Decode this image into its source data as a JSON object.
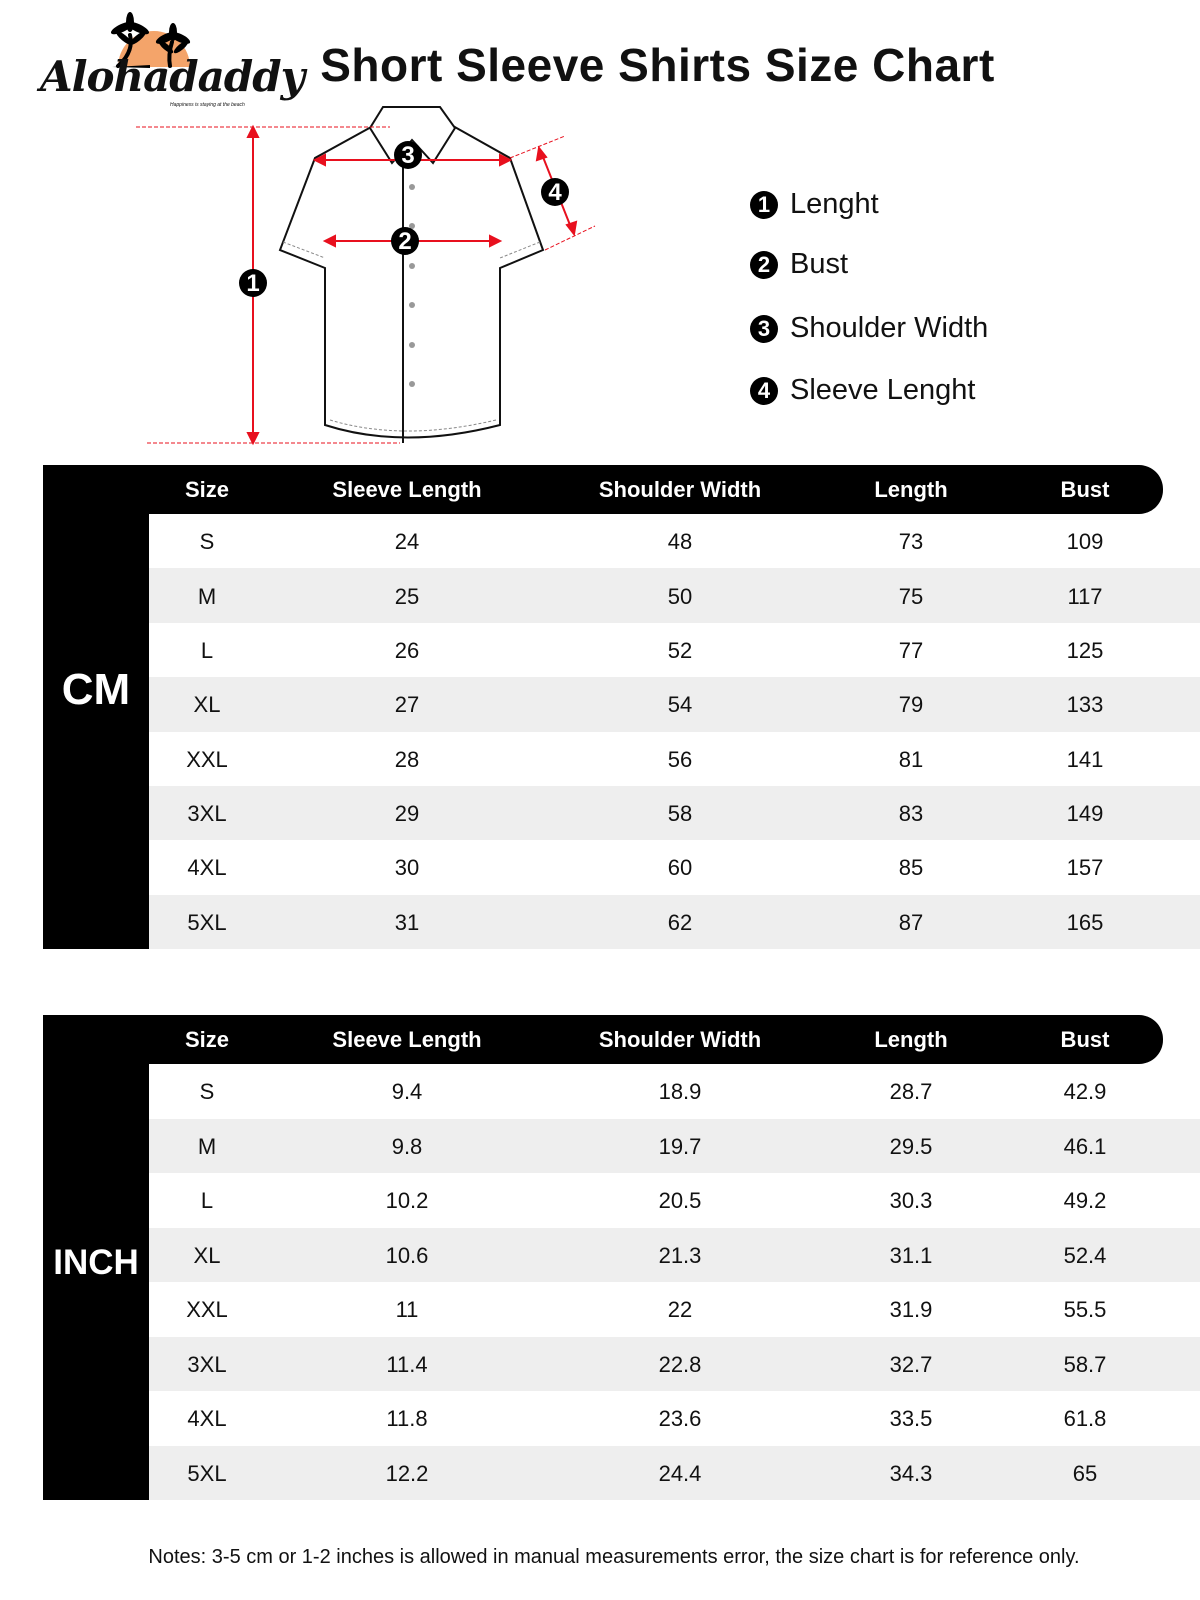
{
  "logo": {
    "name": "Alohadaddy",
    "tagline": "Happiness is staying at the beach",
    "sun_color": "#f4a46a"
  },
  "title": "Short Sleeve Shirts Size Chart",
  "diagram": {
    "markers": [
      "1",
      "2",
      "3",
      "4"
    ],
    "accent_color": "#e8101e"
  },
  "legend": [
    {
      "num": "1",
      "label": "Lenght"
    },
    {
      "num": "2",
      "label": "Bust"
    },
    {
      "num": "3",
      "label": "Shoulder Width"
    },
    {
      "num": "4",
      "label": "Sleeve Lenght"
    }
  ],
  "columns": [
    "Size",
    "Sleeve Length",
    "Shoulder Width",
    "Length",
    "Bust"
  ],
  "tables": [
    {
      "unit": "CM",
      "rows": [
        [
          "S",
          "24",
          "48",
          "73",
          "109"
        ],
        [
          "M",
          "25",
          "50",
          "75",
          "117"
        ],
        [
          "L",
          "26",
          "52",
          "77",
          "125"
        ],
        [
          "XL",
          "27",
          "54",
          "79",
          "133"
        ],
        [
          "XXL",
          "28",
          "56",
          "81",
          "141"
        ],
        [
          "3XL",
          "29",
          "58",
          "83",
          "149"
        ],
        [
          "4XL",
          "30",
          "60",
          "85",
          "157"
        ],
        [
          "5XL",
          "31",
          "62",
          "87",
          "165"
        ]
      ]
    },
    {
      "unit": "INCH",
      "rows": [
        [
          "S",
          "9.4",
          "18.9",
          "28.7",
          "42.9"
        ],
        [
          "M",
          "9.8",
          "19.7",
          "29.5",
          "46.1"
        ],
        [
          "L",
          "10.2",
          "20.5",
          "30.3",
          "49.2"
        ],
        [
          "XL",
          "10.6",
          "21.3",
          "31.1",
          "52.4"
        ],
        [
          "XXL",
          "11",
          "22",
          "31.9",
          "55.5"
        ],
        [
          "3XL",
          "11.4",
          "22.8",
          "32.7",
          "58.7"
        ],
        [
          "4XL",
          "11.8",
          "23.6",
          "33.5",
          "61.8"
        ],
        [
          "5XL",
          "12.2",
          "24.4",
          "34.3",
          "65"
        ]
      ]
    }
  ],
  "notes": "Notes: 3-5 cm or 1-2 inches is allowed in manual measurements error, the size chart is for reference only."
}
